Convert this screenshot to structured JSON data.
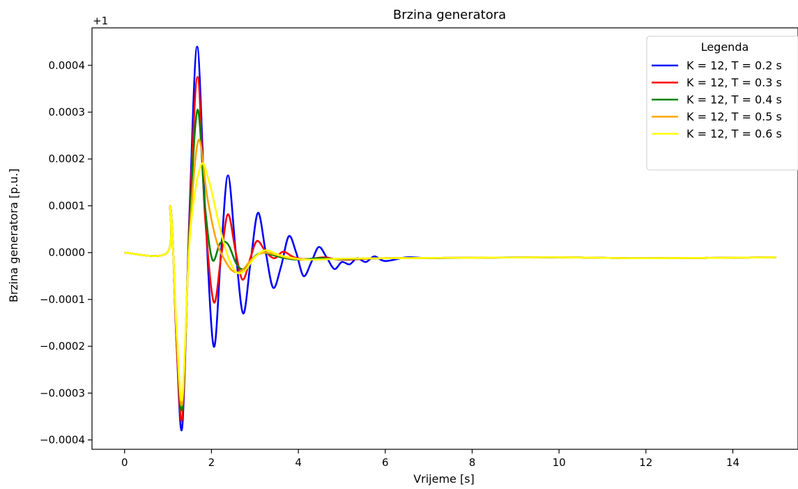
{
  "chart_data": {
    "type": "line",
    "title": "Brzina generatora",
    "xlabel": "Vrijeme [s]",
    "ylabel": "Brzina generatora [p.u.]",
    "offset_label": "+1",
    "xlim": [
      -0.75,
      15.5
    ],
    "ylim": [
      -0.00042,
      0.00048
    ],
    "xticks": [
      0,
      2,
      4,
      6,
      8,
      10,
      12,
      14
    ],
    "xtick_labels": [
      "0",
      "2",
      "4",
      "6",
      "8",
      "10",
      "12",
      "14"
    ],
    "yticks": [
      0.0004,
      0.0003,
      0.0002,
      0.0001,
      0.0,
      -0.0001,
      -0.0002,
      -0.0003,
      -0.0004
    ],
    "ytick_labels": [
      "0.0004",
      "0.0003",
      "0.0002",
      "0.0001",
      "0.0000",
      "−0.0001",
      "−0.0002",
      "−0.0003",
      "−0.0004"
    ],
    "grid": false,
    "legend": {
      "title": "Legenda",
      "placement": "top-right"
    },
    "series": [
      {
        "name": "K = 12, T = 0.2 s",
        "color": "#0000ff",
        "x": [
          0,
          0.98,
          1.05,
          1.12,
          1.2,
          1.33,
          1.5,
          1.67,
          1.85,
          2.05,
          2.22,
          2.38,
          2.56,
          2.73,
          2.9,
          3.07,
          3.25,
          3.42,
          3.6,
          3.78,
          3.95,
          4.12,
          4.3,
          4.47,
          4.65,
          4.83,
          5.0,
          5.18,
          5.35,
          5.55,
          5.75,
          6.0,
          6.5,
          7.0,
          8.0,
          10.0,
          12.0,
          15.0
        ],
        "y": [
          0.0,
          0.0,
          0.0001,
          0.0,
          -0.0002,
          -0.00037,
          0.0001,
          0.00044,
          0.0001,
          -0.0002,
          0.0,
          0.000165,
          0.0,
          -0.00013,
          -2e-05,
          8.5e-05,
          0.0,
          -7.5e-05,
          -3e-05,
          3.5e-05,
          0.0,
          -5e-05,
          -2e-05,
          1.2e-05,
          -1e-05,
          -3.5e-05,
          -2e-05,
          -2.5e-05,
          -1.2e-05,
          -2e-05,
          -8e-06,
          -1.8e-05,
          -1e-05,
          -1.2e-05,
          -1.1e-05,
          -1e-05,
          -1.2e-05,
          -1e-05
        ]
      },
      {
        "name": "K = 12, T = 0.3 s",
        "color": "#ff0000",
        "x": [
          0,
          0.98,
          1.05,
          1.12,
          1.2,
          1.33,
          1.5,
          1.68,
          1.85,
          2.05,
          2.22,
          2.38,
          2.56,
          2.72,
          2.9,
          3.05,
          3.25,
          3.45,
          3.65,
          3.9,
          4.2,
          4.6,
          5.0,
          6.0,
          8.0,
          10.0,
          12.0,
          15.0
        ],
        "y": [
          0.0,
          0.0,
          0.0001,
          0.0,
          -0.0002,
          -0.00035,
          8e-05,
          0.000375,
          8e-05,
          -0.000105,
          -1e-05,
          8.2e-05,
          0.0,
          -5.8e-05,
          -1e-05,
          2.5e-05,
          2e-06,
          -1.2e-05,
          2e-06,
          -1e-05,
          -1.4e-05,
          -1e-05,
          -1.5e-05,
          -1.2e-05,
          -1.1e-05,
          -1e-05,
          -1.2e-05,
          -1e-05
        ]
      },
      {
        "name": "K = 12, T = 0.4 s",
        "color": "#008000",
        "x": [
          0,
          0.98,
          1.05,
          1.12,
          1.2,
          1.33,
          1.5,
          1.68,
          1.85,
          2.02,
          2.2,
          2.38,
          2.58,
          2.75,
          2.95,
          3.15,
          3.4,
          3.7,
          4.0,
          4.5,
          5.0,
          6.0,
          8.0,
          10.0,
          12.0,
          15.0
        ],
        "y": [
          0.0,
          0.0,
          0.0001,
          0.0,
          -0.00018,
          -0.00033,
          6e-05,
          0.000305,
          0.0001,
          -1.5e-05,
          2e-05,
          1.8e-05,
          -2.5e-05,
          -3.5e-05,
          -1.2e-05,
          0.0,
          -5e-06,
          -1.2e-05,
          -1.5e-05,
          -1.2e-05,
          -1.4e-05,
          -1.2e-05,
          -1.1e-05,
          -1e-05,
          -1.2e-05,
          -1e-05
        ]
      },
      {
        "name": "K = 12, T = 0.5 s",
        "color": "#ffa500",
        "x": [
          0,
          0.98,
          1.05,
          1.12,
          1.2,
          1.33,
          1.5,
          1.7,
          1.9,
          2.1,
          2.3,
          2.5,
          2.7,
          2.95,
          3.2,
          3.5,
          3.8,
          4.2,
          5.0,
          6.0,
          8.0,
          10.0,
          12.0,
          15.0
        ],
        "y": [
          0.0,
          0.0,
          0.0001,
          0.0,
          -0.00018,
          -0.00032,
          4e-05,
          0.00024,
          0.00012,
          3e-05,
          -1.5e-05,
          -4e-05,
          -3.8e-05,
          -1.2e-05,
          0.0,
          -5e-06,
          -1.2e-05,
          -1.5e-05,
          -1.3e-05,
          -1.2e-05,
          -1.1e-05,
          -1e-05,
          -1.2e-05,
          -1e-05
        ]
      },
      {
        "name": "K = 12, T = 0.6 s",
        "color": "#ffff00",
        "x": [
          0,
          0.98,
          1.05,
          1.12,
          1.2,
          1.33,
          1.5,
          1.75,
          1.95,
          2.15,
          2.35,
          2.55,
          2.75,
          3.0,
          3.25,
          3.55,
          3.9,
          4.3,
          5.0,
          6.0,
          8.0,
          10.0,
          12.0,
          15.0
        ],
        "y": [
          0.0,
          0.0,
          0.0001,
          0.0,
          -0.00017,
          -0.00031,
          3e-05,
          0.000185,
          0.00015,
          7e-05,
          0.0,
          -4e-05,
          -4e-05,
          -1e-05,
          5e-06,
          -5e-06,
          -1.2e-05,
          -1.5e-05,
          -1.3e-05,
          -1.2e-05,
          -1.1e-05,
          -1e-05,
          -1.2e-05,
          -1e-05
        ]
      }
    ]
  }
}
